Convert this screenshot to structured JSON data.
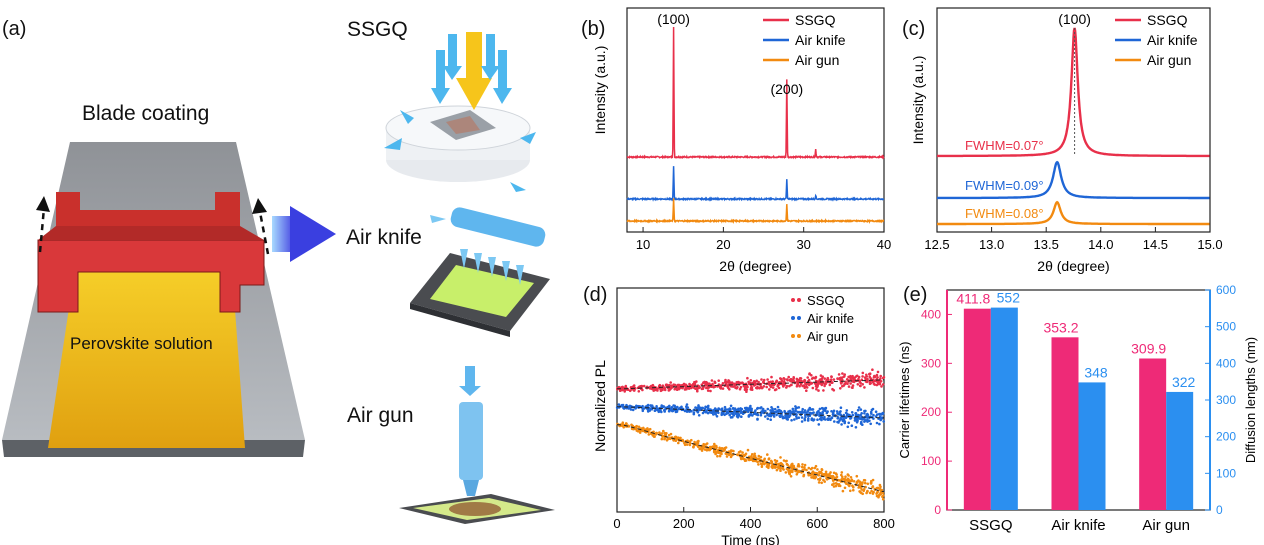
{
  "panel_labels": {
    "a": "(a)",
    "b": "(b)",
    "c": "(c)",
    "d": "(d)",
    "e": "(e)"
  },
  "schematic": {
    "blade_coating": "Blade coating",
    "perovskite_solution": "Perovskite solution",
    "ssgq": "SSGQ",
    "air_knife": "Air knife",
    "air_gun": "Air gun"
  },
  "colors": {
    "ssgq": "#e8304a",
    "air_knife": "#1f66d6",
    "air_gun": "#f28a10",
    "lifetime": "#ee2a77",
    "diffusion": "#2b8ff0"
  },
  "chart_data": [
    {
      "id": "b",
      "type": "line",
      "xlabel": "2θ (degree)",
      "ylabel": "Intensity (a.u.)",
      "xlim": [
        8,
        40
      ],
      "xticks": [
        "10",
        "20",
        "30",
        "40"
      ],
      "legend": [
        "SSGQ",
        "Air knife",
        "Air gun"
      ],
      "legend_position": "top-right",
      "annotations": [
        "(100)",
        "(200)"
      ],
      "series": [
        {
          "name": "SSGQ",
          "peaks": [
            {
              "x": 13.8,
              "height": 1.0
            },
            {
              "x": 27.9,
              "height": 0.6
            },
            {
              "x": 31.5,
              "height": 0.06
            }
          ]
        },
        {
          "name": "Air knife",
          "peaks": [
            {
              "x": 13.8,
              "height": 0.25
            },
            {
              "x": 27.9,
              "height": 0.15
            },
            {
              "x": 31.5,
              "height": 0.03
            }
          ]
        },
        {
          "name": "Air gun",
          "peaks": [
            {
              "x": 13.8,
              "height": 0.17
            },
            {
              "x": 27.9,
              "height": 0.13
            }
          ]
        }
      ]
    },
    {
      "id": "c",
      "type": "line",
      "xlabel": "2θ (degree)",
      "ylabel": "Intensity (a.u.)",
      "xlim": [
        12.5,
        15.0
      ],
      "xticks": [
        "12.5",
        "13.0",
        "13.5",
        "14.0",
        "14.5",
        "15.0"
      ],
      "legend": [
        "SSGQ",
        "Air knife",
        "Air gun"
      ],
      "legend_position": "top-right",
      "annotations": [
        "(100)",
        "FWHM=0.07°",
        "FWHM=0.09°",
        "FWHM=0.08°"
      ],
      "series": [
        {
          "name": "SSGQ",
          "center": 13.76,
          "fwhm": 0.07,
          "height": 1.0
        },
        {
          "name": "Air knife",
          "center": 13.6,
          "fwhm": 0.09,
          "height": 0.28
        },
        {
          "name": "Air gun",
          "center": 13.6,
          "fwhm": 0.08,
          "height": 0.17
        }
      ]
    },
    {
      "id": "d",
      "type": "scatter",
      "xlabel": "Time (ns)",
      "ylabel": "Normalized PL",
      "xlim": [
        0,
        800
      ],
      "xticks": [
        "0",
        "200",
        "400",
        "600",
        "800"
      ],
      "yscale": "log",
      "legend": [
        "SSGQ",
        "Air knife",
        "Air gun"
      ],
      "legend_position": "top-right",
      "series": [
        {
          "name": "SSGQ",
          "tau_ns": 411.8
        },
        {
          "name": "Air knife",
          "tau_ns": 353.2
        },
        {
          "name": "Air gun",
          "tau_ns": 309.9
        }
      ]
    },
    {
      "id": "e",
      "type": "bar",
      "categories": [
        "SSGQ",
        "Air knife",
        "Air gun"
      ],
      "ylabel_left": "Carrier lifetimes (ns)",
      "ylabel_right": "Diffusion lengths (nm)",
      "ylim_left": [
        0,
        450
      ],
      "ylim_right": [
        0,
        600
      ],
      "yticks_left": [
        "0",
        "100",
        "200",
        "300",
        "400"
      ],
      "yticks_right": [
        "0",
        "100",
        "200",
        "300",
        "400",
        "500",
        "600"
      ],
      "series": [
        {
          "name": "Carrier lifetimes",
          "axis": "left",
          "values": [
            411.8,
            353.2,
            309.9
          ],
          "labels": [
            "411.8",
            "353.2",
            "309.9"
          ]
        },
        {
          "name": "Diffusion lengths",
          "axis": "right",
          "values": [
            552,
            348,
            322
          ],
          "labels": [
            "552",
            "348",
            "322"
          ]
        }
      ]
    }
  ]
}
